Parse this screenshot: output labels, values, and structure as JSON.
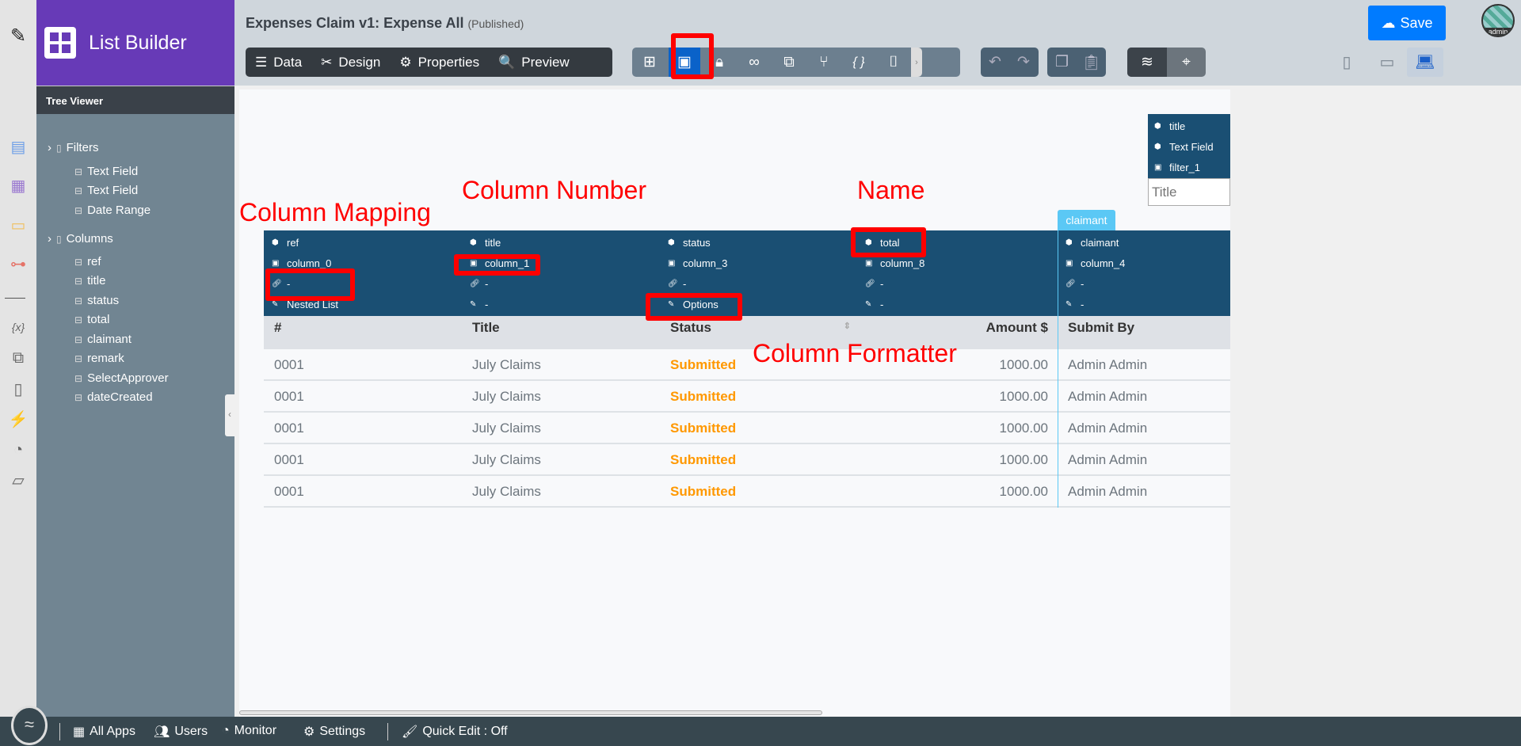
{
  "app": {
    "title": "List Builder",
    "page_title": "Expenses Claim v1: Expense All",
    "page_status": "(Published)",
    "tree_viewer": "Tree Viewer"
  },
  "toolbar": {
    "data": "Data",
    "design": "Design",
    "properties": "Properties",
    "preview": "Preview",
    "save": "Save",
    "avatar": "admin"
  },
  "tree": {
    "filters": {
      "label": "Filters",
      "items": [
        "Text Field",
        "Text Field",
        "Date Range"
      ]
    },
    "columns": {
      "label": "Columns",
      "items": [
        "ref",
        "title",
        "status",
        "total",
        "claimant",
        "remark",
        "SelectApprover",
        "dateCreated"
      ]
    }
  },
  "filter_widget": {
    "name": "title",
    "type": "Text Field",
    "id": "filter_1",
    "placeholder": "Title"
  },
  "selected_tab": "claimant",
  "columns": [
    {
      "name": "ref",
      "number": "column_0",
      "mapping": "-",
      "formatter": "Nested List",
      "header": "#"
    },
    {
      "name": "title",
      "number": "column_1",
      "mapping": "-",
      "formatter": "-",
      "header": "Title"
    },
    {
      "name": "status",
      "number": "column_3",
      "mapping": "-",
      "formatter": "Options",
      "header": "Status"
    },
    {
      "name": "total",
      "number": "column_8",
      "mapping": "-",
      "formatter": "-",
      "header": "Amount $"
    },
    {
      "name": "claimant",
      "number": "column_4",
      "mapping": "-",
      "formatter": "-",
      "header": "Submit By"
    }
  ],
  "rows": [
    [
      "0001",
      "July Claims",
      "Submitted",
      "1000.00",
      "Admin Admin"
    ],
    [
      "0001",
      "July Claims",
      "Submitted",
      "1000.00",
      "Admin Admin"
    ],
    [
      "0001",
      "July Claims",
      "Submitted",
      "1000.00",
      "Admin Admin"
    ],
    [
      "0001",
      "July Claims",
      "Submitted",
      "1000.00",
      "Admin Admin"
    ],
    [
      "0001",
      "July Claims",
      "Submitted",
      "1000.00",
      "Admin Admin"
    ]
  ],
  "annotations": {
    "mapping": "Column Mapping",
    "number": "Column Number",
    "name": "Name",
    "formatter": "Column Formatter"
  },
  "bottom": {
    "all_apps": "All Apps",
    "users": "Users",
    "monitor": "Monitor",
    "settings": "Settings",
    "quick_edit": "Quick Edit : Off"
  },
  "colors": {
    "brand": "#673ab7",
    "band": "#1a4f73",
    "status": "#ff9800",
    "save": "#007bff",
    "tab": "#5bc8f5",
    "annotation": "#ff0000"
  }
}
